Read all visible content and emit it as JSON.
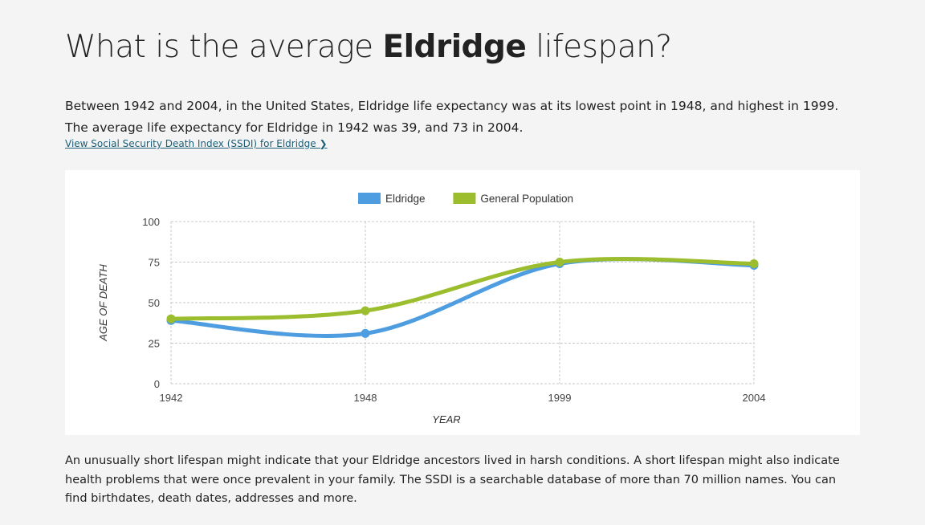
{
  "heading": {
    "prefix": "What is the average ",
    "name": "Eldridge",
    "suffix": " lifespan?"
  },
  "intro": "Between 1942 and 2004, in the United States, Eldridge life expectancy was at its lowest point in 1948, and highest in 1999. The average life expectancy for Eldridge in 1942 was 39, and 73 in 2004.",
  "ssdi_link": "View Social Security Death Index (SSDI) for Eldridge ❯",
  "outro": "An unusually short lifespan might indicate that your Eldridge ancestors lived in harsh conditions. A short lifespan might also indicate health problems that were once prevalent in your family. The SSDI is a searchable database of more than 70 million names. You can find birthdates, death dates, addresses and more.",
  "chart_data": {
    "type": "line",
    "categories": [
      "1942",
      "1948",
      "1999",
      "2004"
    ],
    "series": [
      {
        "name": "Eldridge",
        "values": [
          39,
          31,
          74,
          73
        ],
        "color": "#4e9de0"
      },
      {
        "name": "General Population",
        "values": [
          40,
          45,
          75,
          74
        ],
        "color": "#9bbd2e"
      }
    ],
    "xlabel": "YEAR",
    "ylabel": "AGE OF DEATH",
    "ylim": [
      0,
      100
    ],
    "yticks": [
      "0",
      "25",
      "50",
      "75",
      "100"
    ],
    "grid": true,
    "legend": "top-center",
    "smooth": true
  }
}
